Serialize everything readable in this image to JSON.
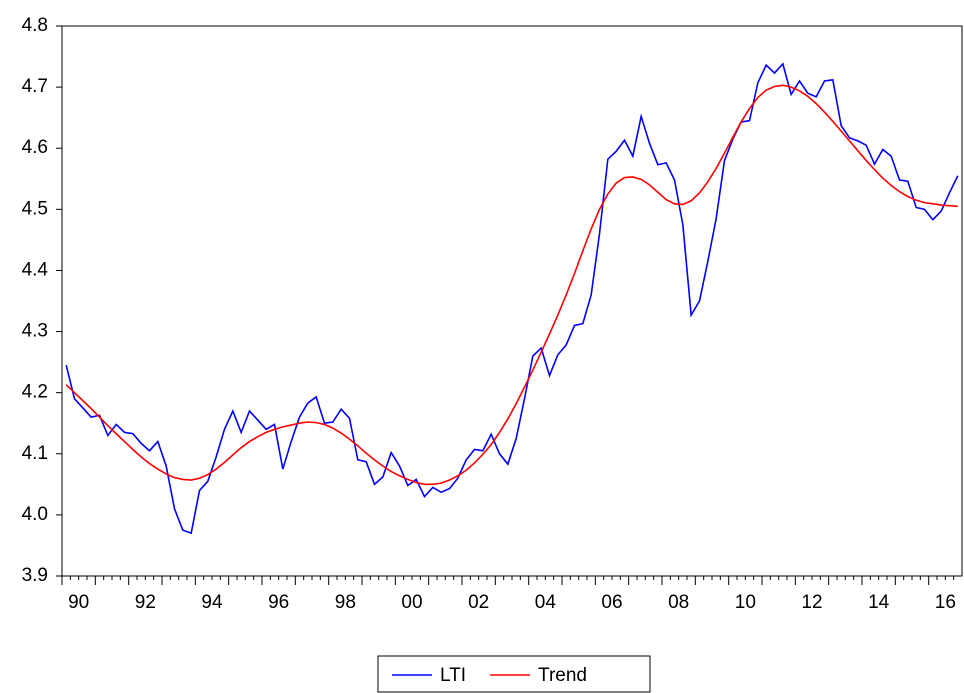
{
  "chart_data": {
    "type": "line",
    "categories": [
      null,
      "90",
      null,
      null,
      null,
      null,
      null,
      null,
      null,
      "92",
      null,
      null,
      null,
      null,
      null,
      null,
      null,
      "94",
      null,
      null,
      null,
      null,
      null,
      null,
      null,
      "96",
      null,
      null,
      null,
      null,
      null,
      null,
      null,
      "98",
      null,
      null,
      null,
      null,
      null,
      null,
      null,
      "00",
      null,
      null,
      null,
      null,
      null,
      null,
      null,
      "02",
      null,
      null,
      null,
      null,
      null,
      null,
      null,
      "04",
      null,
      null,
      null,
      null,
      null,
      null,
      null,
      "06",
      null,
      null,
      null,
      null,
      null,
      null,
      null,
      "08",
      null,
      null,
      null,
      null,
      null,
      null,
      null,
      "10",
      null,
      null,
      null,
      null,
      null,
      null,
      null,
      "12",
      null,
      null,
      null,
      null,
      null,
      null,
      null,
      "14",
      null,
      null,
      null,
      null,
      null,
      null,
      null,
      "16",
      null,
      null
    ],
    "series": [
      {
        "name": "LTI",
        "color": "#0000ff",
        "values": [
          4.245,
          4.19,
          4.175,
          4.16,
          4.163,
          4.13,
          4.148,
          4.135,
          4.133,
          4.117,
          4.105,
          4.12,
          4.08,
          4.01,
          3.975,
          3.97,
          4.04,
          4.055,
          4.095,
          4.14,
          4.17,
          4.135,
          4.17,
          4.155,
          4.14,
          4.148,
          4.075,
          4.12,
          4.16,
          4.183,
          4.193,
          4.15,
          4.152,
          4.173,
          4.158,
          4.09,
          4.087,
          4.05,
          4.062,
          4.102,
          4.08,
          4.048,
          4.058,
          4.03,
          4.045,
          4.037,
          4.043,
          4.06,
          4.09,
          4.107,
          4.105,
          4.132,
          4.1,
          4.083,
          4.125,
          4.19,
          4.26,
          4.273,
          4.228,
          4.262,
          4.278,
          4.31,
          4.313,
          4.36,
          4.46,
          4.582,
          4.595,
          4.613,
          4.587,
          4.652,
          4.608,
          4.573,
          4.576,
          4.548,
          4.475,
          4.327,
          4.35,
          4.415,
          4.485,
          4.58,
          4.615,
          4.643,
          4.645,
          4.707,
          4.736,
          4.723,
          4.738,
          4.688,
          4.71,
          4.69,
          4.684,
          4.71,
          4.712,
          4.637,
          4.617,
          4.612,
          4.605,
          4.574,
          4.598,
          4.587,
          4.548,
          4.546,
          4.503,
          4.5,
          4.483,
          4.497,
          4.527,
          4.555
        ]
      },
      {
        "name": "Trend",
        "color": "#ff0000",
        "values": [
          4.213,
          4.2,
          4.187,
          4.174,
          4.16,
          4.146,
          4.133,
          4.12,
          4.107,
          4.095,
          4.084,
          4.075,
          4.067,
          4.061,
          4.058,
          4.057,
          4.06,
          4.066,
          4.075,
          4.086,
          4.098,
          4.11,
          4.12,
          4.128,
          4.135,
          4.14,
          4.144,
          4.147,
          4.15,
          4.152,
          4.151,
          4.148,
          4.142,
          4.134,
          4.124,
          4.113,
          4.101,
          4.09,
          4.08,
          4.071,
          4.064,
          4.058,
          4.053,
          4.05,
          4.05,
          4.052,
          4.057,
          4.064,
          4.073,
          4.085,
          4.099,
          4.115,
          4.135,
          4.157,
          4.182,
          4.209,
          4.237,
          4.266,
          4.296,
          4.327,
          4.36,
          4.395,
          4.432,
          4.468,
          4.5,
          4.525,
          4.543,
          4.552,
          4.553,
          4.549,
          4.54,
          4.528,
          4.516,
          4.509,
          4.508,
          4.514,
          4.527,
          4.545,
          4.567,
          4.592,
          4.618,
          4.643,
          4.665,
          4.683,
          4.695,
          4.701,
          4.703,
          4.7,
          4.694,
          4.685,
          4.673,
          4.659,
          4.644,
          4.628,
          4.612,
          4.596,
          4.58,
          4.565,
          4.551,
          4.539,
          4.529,
          4.521,
          4.515,
          4.511,
          4.509,
          4.507,
          4.506,
          4.505
        ]
      }
    ],
    "ylim": [
      3.9,
      4.8
    ],
    "yticks": [
      3.9,
      {
        "value": 4,
        "label": "4.0"
      },
      4.1,
      4.2,
      4.3,
      4.4,
      4.5,
      4.6,
      4.7,
      4.8
    ],
    "legend": "bottom"
  }
}
